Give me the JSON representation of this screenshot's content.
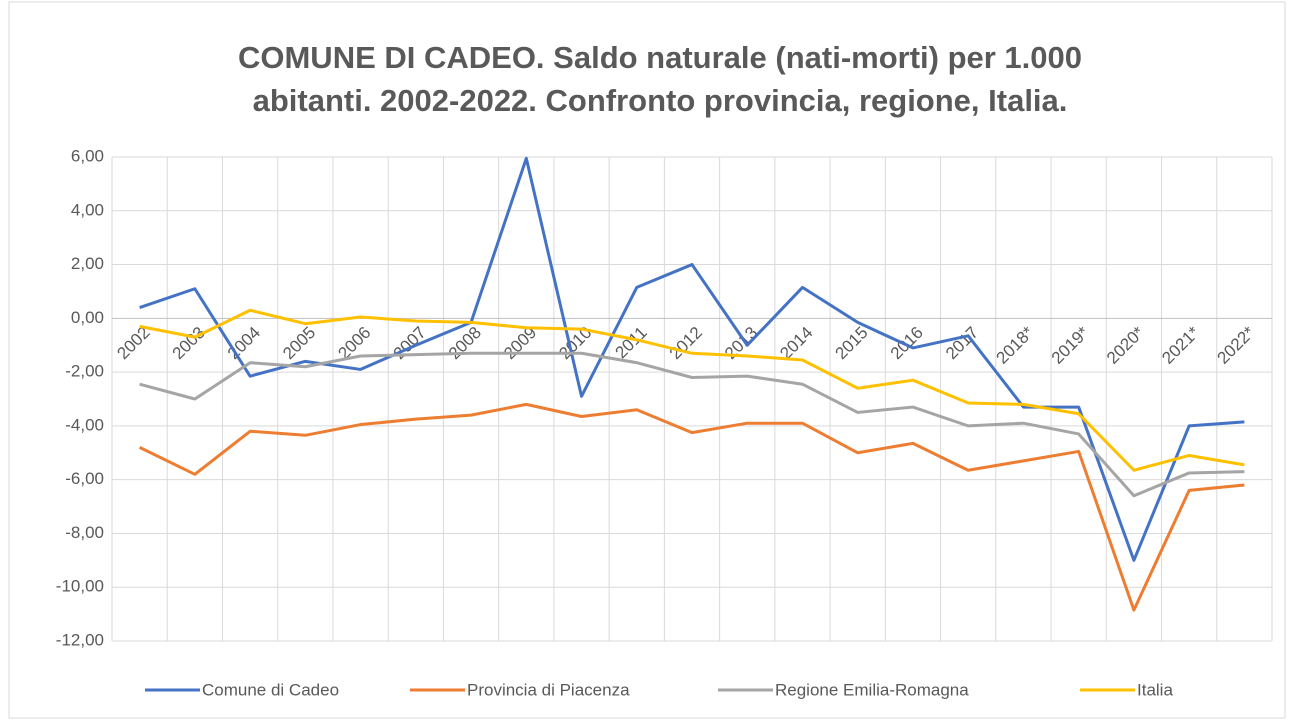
{
  "chart_data": {
    "type": "line",
    "title": [
      "COMUNE DI CADEO. Saldo naturale (nati-morti) per 1.000",
      "abitanti. 2002-2022. Confronto provincia, regione, Italia."
    ],
    "categories": [
      "2002",
      "2003",
      "2004",
      "2005",
      "2006",
      "2007",
      "2008",
      "2009",
      "2010",
      "2011",
      "2012",
      "2013",
      "2014",
      "2015",
      "2016",
      "2017",
      "2018*",
      "2019*",
      "2020*",
      "2021*",
      "2022*"
    ],
    "series": [
      {
        "name": "Comune di Cadeo",
        "color": "#4472c4",
        "values": [
          0.4,
          1.1,
          -2.15,
          -1.6,
          -1.9,
          -1.0,
          -0.15,
          5.95,
          -2.9,
          1.15,
          2.0,
          -1.0,
          1.15,
          -0.15,
          -1.1,
          -0.65,
          -3.3,
          -3.3,
          -9.0,
          -4.0,
          -3.85
        ]
      },
      {
        "name": "Provincia di Piacenza",
        "color": "#ed7d31",
        "values": [
          -4.8,
          -5.8,
          -4.2,
          -4.35,
          -3.95,
          -3.75,
          -3.6,
          -3.2,
          -3.65,
          -3.4,
          -4.25,
          -3.9,
          -3.9,
          -5.0,
          -4.65,
          -5.65,
          -5.3,
          -4.95,
          -10.85,
          -6.4,
          -6.2
        ]
      },
      {
        "name": "Regione Emilia-Romagna",
        "color": "#a5a5a5",
        "values": [
          -2.45,
          -3.0,
          -1.65,
          -1.8,
          -1.4,
          -1.35,
          -1.3,
          -1.3,
          -1.3,
          -1.65,
          -2.2,
          -2.15,
          -2.45,
          -3.5,
          -3.3,
          -4.0,
          -3.9,
          -4.3,
          -6.6,
          -5.75,
          -5.7
        ]
      },
      {
        "name": "Italia",
        "color": "#ffc000",
        "values": [
          -0.3,
          -0.7,
          0.3,
          -0.2,
          0.05,
          -0.1,
          -0.15,
          -0.35,
          -0.4,
          -0.8,
          -1.3,
          -1.4,
          -1.55,
          -2.6,
          -2.3,
          -3.15,
          -3.2,
          -3.55,
          -5.65,
          -5.1,
          -5.45
        ]
      }
    ],
    "ylim": [
      -12,
      6
    ],
    "yticks": [
      {
        "value": -12,
        "label": "-12,00"
      },
      {
        "value": -10,
        "label": "-10,00"
      },
      {
        "value": -8,
        "label": "-8,00"
      },
      {
        "value": -6,
        "label": "-6,00"
      },
      {
        "value": -4,
        "label": "-4,00"
      },
      {
        "value": -2,
        "label": "-2,00"
      },
      {
        "value": 0,
        "label": "0,00"
      },
      {
        "value": 2,
        "label": "2,00"
      },
      {
        "value": 4,
        "label": "4,00"
      },
      {
        "value": 6,
        "label": "6,00"
      }
    ],
    "grid": true,
    "legend": "bottom"
  }
}
